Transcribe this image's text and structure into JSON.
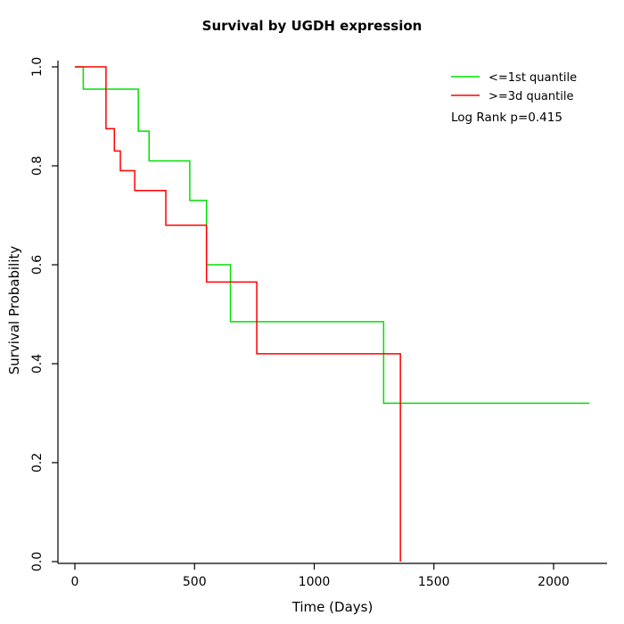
{
  "chart_data": {
    "type": "line",
    "subtype": "kaplan-meier-step-curves",
    "title": "Survival by UGDH expression",
    "xlabel": "Time (Days)",
    "ylabel": "Survival Probability",
    "xlim": [
      0,
      2200
    ],
    "ylim": [
      0.0,
      1.0
    ],
    "x_ticks": [
      0,
      500,
      1000,
      1500,
      2000
    ],
    "y_tick_labels": [
      "0.0",
      "0.2",
      "0.4",
      "0.6",
      "0.8",
      "1.0"
    ],
    "grid": false,
    "axis_color": "#000000",
    "annotation": "Log Rank p=0.415",
    "legend": {
      "position": "top-right",
      "entries": [
        {
          "label": "<=1st quantile",
          "color": "#00e000"
        },
        {
          "label": ">=3d quantile",
          "color": "#ff0000"
        }
      ]
    },
    "series": [
      {
        "name": "<=1st quantile",
        "color": "#00e000",
        "end_time": 2150,
        "points": [
          [
            0,
            1.0
          ],
          [
            35,
            0.955
          ],
          [
            265,
            0.87
          ],
          [
            310,
            0.81
          ],
          [
            480,
            0.73
          ],
          [
            550,
            0.6
          ],
          [
            650,
            0.485
          ],
          [
            1290,
            0.32
          ]
        ]
      },
      {
        "name": ">=3d quantile",
        "color": "#ff0000",
        "end_time": 1360,
        "points": [
          [
            0,
            1.0
          ],
          [
            130,
            0.875
          ],
          [
            165,
            0.83
          ],
          [
            190,
            0.79
          ],
          [
            250,
            0.75
          ],
          [
            380,
            0.68
          ],
          [
            550,
            0.565
          ],
          [
            760,
            0.42
          ],
          [
            1360,
            0.0
          ]
        ]
      }
    ]
  }
}
